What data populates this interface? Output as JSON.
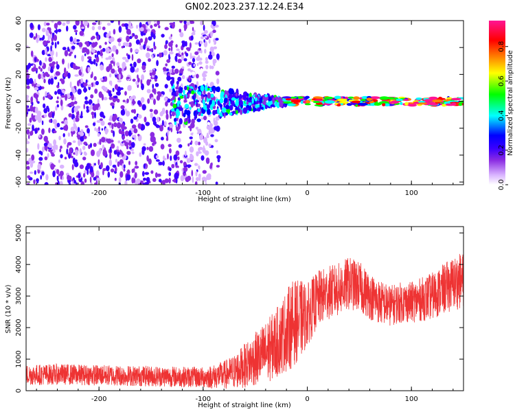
{
  "figure": {
    "title": "GN02.2023.237.12.24.E34"
  },
  "chart_data": [
    {
      "type": "heatmap",
      "xlabel": "Height of straight line (km)",
      "ylabel": "Frequency (Hz)",
      "xlim": [
        -270,
        150
      ],
      "ylim": [
        -62,
        60
      ],
      "xticks": [
        -200,
        -100,
        0,
        100
      ],
      "xtick_labels": [
        "-200",
        "-100",
        "0",
        "100"
      ],
      "yticks": [
        -60,
        -40,
        -20,
        0,
        20,
        40,
        60
      ],
      "ytick_labels": [
        "-60",
        "-40",
        "-20",
        "0",
        "20",
        "40",
        "60"
      ],
      "colorbar": {
        "label": "Normalized spectral amplitude",
        "range": [
          0,
          0.95
        ],
        "ticks": [
          0.0,
          0.2,
          0.4,
          0.6,
          0.8
        ],
        "tick_labels": [
          "0.0",
          "0.2",
          "0.4",
          "0.6",
          "0.8"
        ],
        "colormap": [
          "#ffffff",
          "#d9b3ff",
          "#8a2be2",
          "#3b00ff",
          "#0000ff",
          "#00ffff",
          "#00ff00",
          "#ffff00",
          "#ff8000",
          "#ff0000",
          "#ff1493"
        ]
      },
      "regions": [
        {
          "x_range": [
            -270,
            -85
          ],
          "y_range": [
            -62,
            60
          ],
          "pattern": "broadband speckle",
          "amplitude": 0.25
        },
        {
          "x_range": [
            -130,
            -20
          ],
          "y_range": [
            -15,
            20
          ],
          "pattern": "converging streaks",
          "amplitude": 0.45
        },
        {
          "x_range": [
            -20,
            150
          ],
          "y_range": [
            -3,
            3
          ],
          "pattern": "narrow band at 0 Hz",
          "amplitude": 0.9
        }
      ]
    },
    {
      "type": "line",
      "xlabel": "Height of straight line (km)",
      "ylabel": "SNR (10 * v/v)",
      "xlim": [
        -270,
        150
      ],
      "ylim": [
        0,
        5200
      ],
      "xticks": [
        -200,
        -100,
        0,
        100
      ],
      "xtick_labels": [
        "-200",
        "-100",
        "0",
        "100"
      ],
      "yticks": [
        0,
        1000,
        2000,
        3000,
        4000,
        5000
      ],
      "ytick_labels": [
        "0",
        "1000",
        "2000",
        "3000",
        "4000",
        "5000"
      ],
      "color": "#ee3333",
      "series": [
        {
          "x": [
            -270,
            -240,
            -210,
            -180,
            -150,
            -120,
            -100,
            -90,
            -80,
            -70,
            -60,
            -50,
            -40,
            -30,
            -25,
            -20,
            -15,
            -10,
            -5,
            0,
            10,
            20,
            30,
            40,
            50,
            60,
            70,
            80,
            90,
            100,
            110,
            120,
            130,
            140,
            150
          ],
          "y": [
            500,
            520,
            500,
            480,
            460,
            440,
            420,
            450,
            500,
            600,
            800,
            1000,
            1200,
            1500,
            1700,
            1900,
            2100,
            2200,
            2300,
            2400,
            2900,
            3100,
            3200,
            3400,
            3300,
            3000,
            2800,
            2700,
            2800,
            2800,
            2900,
            3000,
            3200,
            3400,
            3500
          ],
          "spread": [
            330,
            330,
            330,
            330,
            330,
            330,
            330,
            380,
            450,
            550,
            700,
            850,
            1000,
            1100,
            1200,
            1300,
            1400,
            1300,
            1200,
            1000,
            900,
            850,
            850,
            850,
            800,
            750,
            700,
            650,
            650,
            650,
            700,
            750,
            800,
            850,
            900
          ]
        }
      ]
    }
  ]
}
